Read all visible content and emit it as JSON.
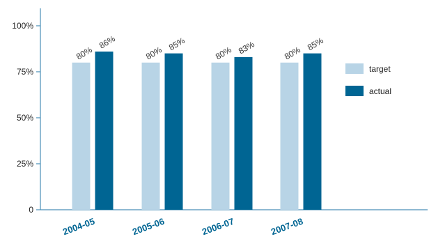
{
  "chart_data": {
    "type": "bar",
    "categories": [
      "2004-05",
      "2005-06",
      "2006-07",
      "2007-08"
    ],
    "series": [
      {
        "name": "target",
        "values": [
          80,
          80,
          80,
          80
        ],
        "labels": [
          "80%",
          "80%",
          "80%",
          "80%"
        ],
        "color": "#b8d4e6"
      },
      {
        "name": "actual",
        "values": [
          86,
          85,
          83,
          85
        ],
        "labels": [
          "86%",
          "85%",
          "83%",
          "85%"
        ],
        "color": "#006593"
      }
    ],
    "yticks": [
      {
        "value": 0,
        "label": "0"
      },
      {
        "value": 25,
        "label": "25%"
      },
      {
        "value": 50,
        "label": "50%"
      },
      {
        "value": 75,
        "label": "75%"
      },
      {
        "value": 100,
        "label": "100%"
      }
    ],
    "ylim": [
      0,
      110
    ],
    "title": "",
    "xlabel": "",
    "ylabel": "",
    "grid": false,
    "legend_position": "right",
    "axis_color": "#4a8fb8",
    "category_label_color": "#006593"
  }
}
